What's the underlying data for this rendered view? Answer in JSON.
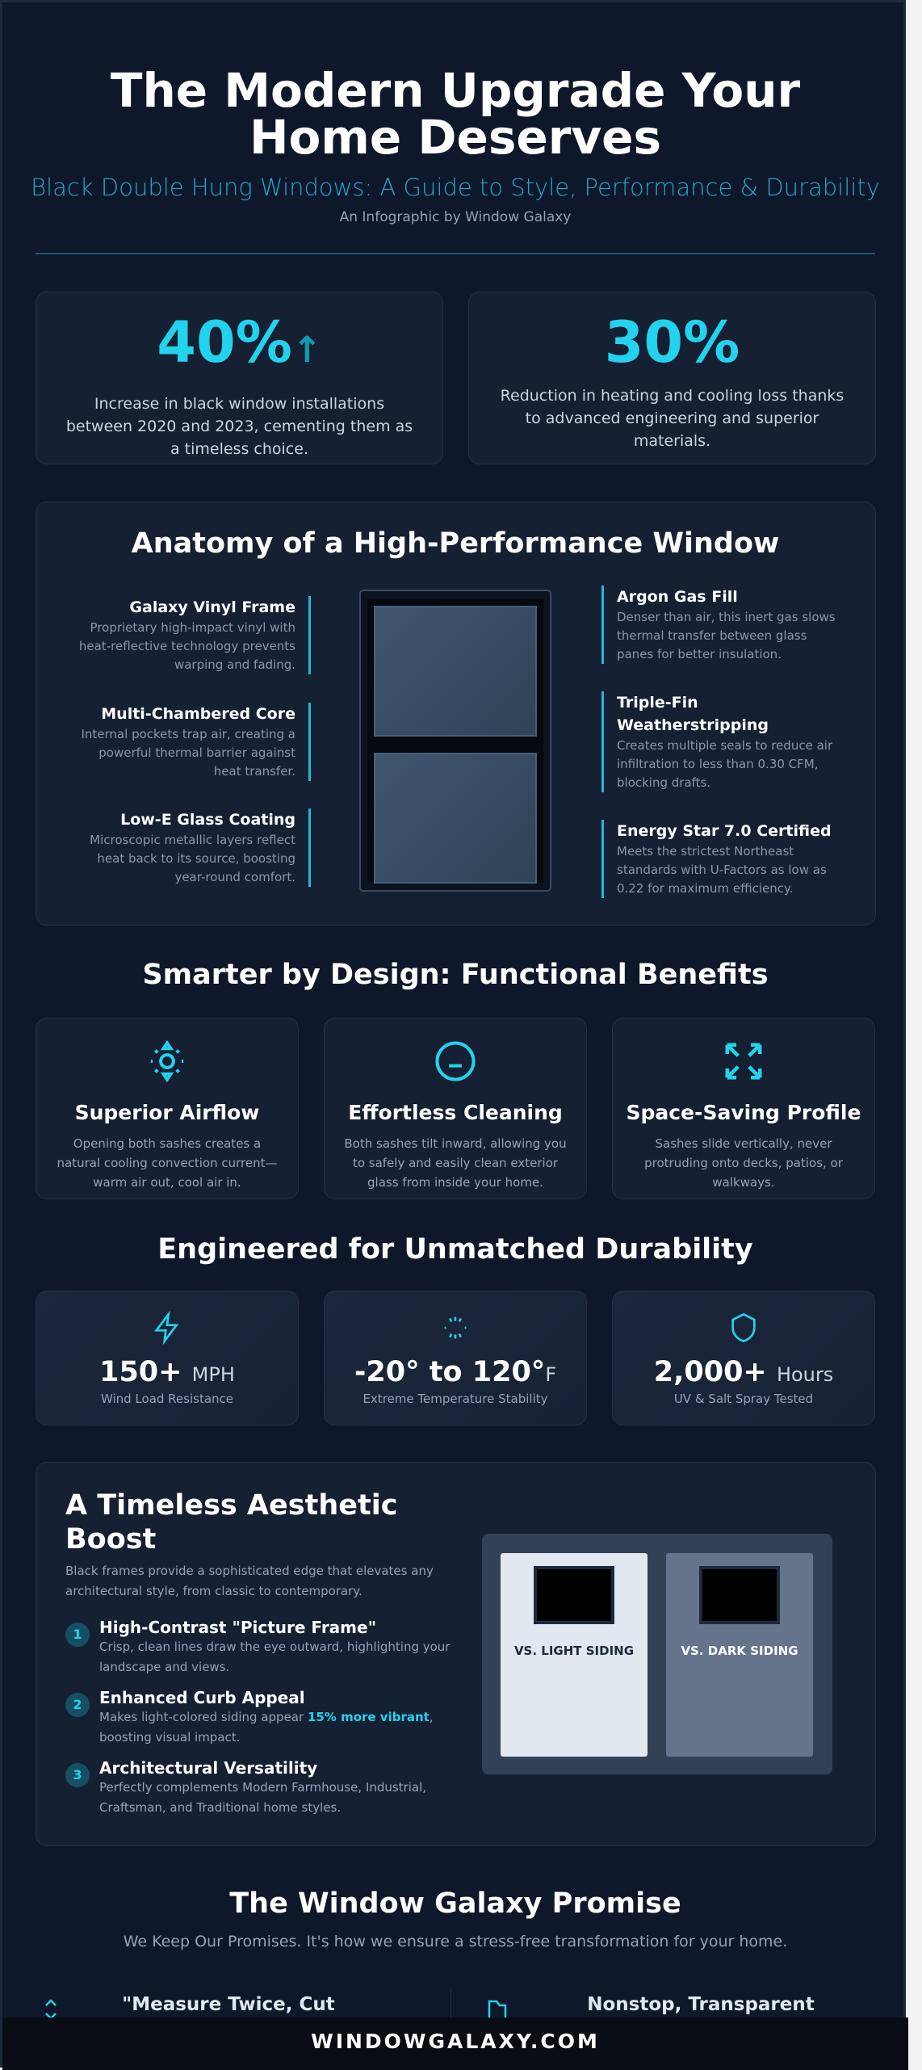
{
  "header": {
    "title": "The Modern Upgrade Your Home Deserves",
    "subtitle": "Black Double Hung Windows: A Guide to Style, Performance & Durability",
    "byline": "An Infographic by Window Galaxy"
  },
  "stats": [
    {
      "value": "40%",
      "arrow": "↑",
      "description": "Increase in black window installations between 2020 and 2023, cementing them as a timeless choice."
    },
    {
      "value": "30%",
      "description": "Reduction in heating and cooling loss thanks to advanced engineering and superior materials."
    }
  ],
  "anatomy": {
    "title": "Anatomy of a High-Performance Window",
    "left": [
      {
        "title": "Galaxy Vinyl Frame",
        "description": "Proprietary high-impact vinyl with heat-reflective technology prevents warping and fading."
      },
      {
        "title": "Multi-Chambered Core",
        "description": "Internal pockets trap air, creating a powerful thermal barrier against heat transfer."
      },
      {
        "title": "Low-E Glass Coating",
        "description": "Microscopic metallic layers reflect heat back to its source, boosting year-round comfort."
      }
    ],
    "right": [
      {
        "title": "Argon Gas Fill",
        "description": "Denser than air, this inert gas slows thermal transfer between glass panes for better insulation."
      },
      {
        "title": "Triple-Fin Weatherstripping",
        "description": "Creates multiple seals to reduce air infiltration to less than 0.30 CFM, blocking drafts."
      },
      {
        "title": "Energy Star 7.0 Certified",
        "description": "Meets the strictest Northeast standards with U-Factors as low as 0.22 for maximum efficiency."
      }
    ]
  },
  "benefits": {
    "title": "Smarter by Design: Functional Benefits",
    "items": [
      {
        "icon": "sun-icon",
        "title": "Superior Airflow",
        "description": "Opening both sashes creates a natural cooling convection current—warm air out, cool air in."
      },
      {
        "icon": "face-icon",
        "title": "Effortless Cleaning",
        "description": "Both sashes tilt inward, allowing you to safely and easily clean exterior glass from inside your home."
      },
      {
        "icon": "collapse-arrows-icon",
        "title": "Space-Saving Profile",
        "description": "Sashes slide vertically, never protruding onto decks, patios, or walkways."
      }
    ]
  },
  "durability": {
    "title": "Engineered for Unmatched Durability",
    "items": [
      {
        "icon": "lightning-icon",
        "value": "150+",
        "unit": "MPH",
        "label": "Wind Load Resistance"
      },
      {
        "icon": "loader-icon",
        "value": "-20° to 120°",
        "unit": "F",
        "label": "Extreme Temperature Stability"
      },
      {
        "icon": "shield-icon",
        "value": "2,000+",
        "unit": "Hours",
        "label": "UV & Salt Spray Tested"
      }
    ]
  },
  "aesthetic": {
    "title": "A Timeless Aesthetic Boost",
    "intro": "Black frames provide a sophisticated edge that elevates any architectural style, from classic to contemporary.",
    "items": [
      {
        "number": "1",
        "title": "High-Contrast \"Picture Frame\"",
        "description": "Crisp, clean lines draw the eye outward, highlighting your landscape and views."
      },
      {
        "number": "2",
        "title": "Enhanced Curb Appeal",
        "description_before": "Makes light-colored siding appear ",
        "highlight": "15% more vibrant",
        "description_after": ", boosting visual impact."
      },
      {
        "number": "3",
        "title": "Architectural Versatility",
        "description": "Perfectly complements Modern Farmhouse, Industrial, Craftsman, and Traditional home styles."
      }
    ],
    "comparison": {
      "light_label": "VS. LIGHT SIDING",
      "dark_label": "VS. DARK SIDING"
    }
  },
  "promise": {
    "title": "The Window Galaxy Promise",
    "subtitle": "We Keep Our Promises. It's how we ensure a stress-free transformation for your home.",
    "items": [
      {
        "icon": "chevrons-icon",
        "title": "\"Measure Twice, Cut Once\" Precision"
      },
      {
        "icon": "folder-icon",
        "title": "Nonstop, Transparent Communication"
      }
    ]
  },
  "footer": {
    "text": "WINDOWGALAXY.COM"
  },
  "colors": {
    "accent": "#22d3ee",
    "background": "#0f172a",
    "card": "#162033"
  }
}
